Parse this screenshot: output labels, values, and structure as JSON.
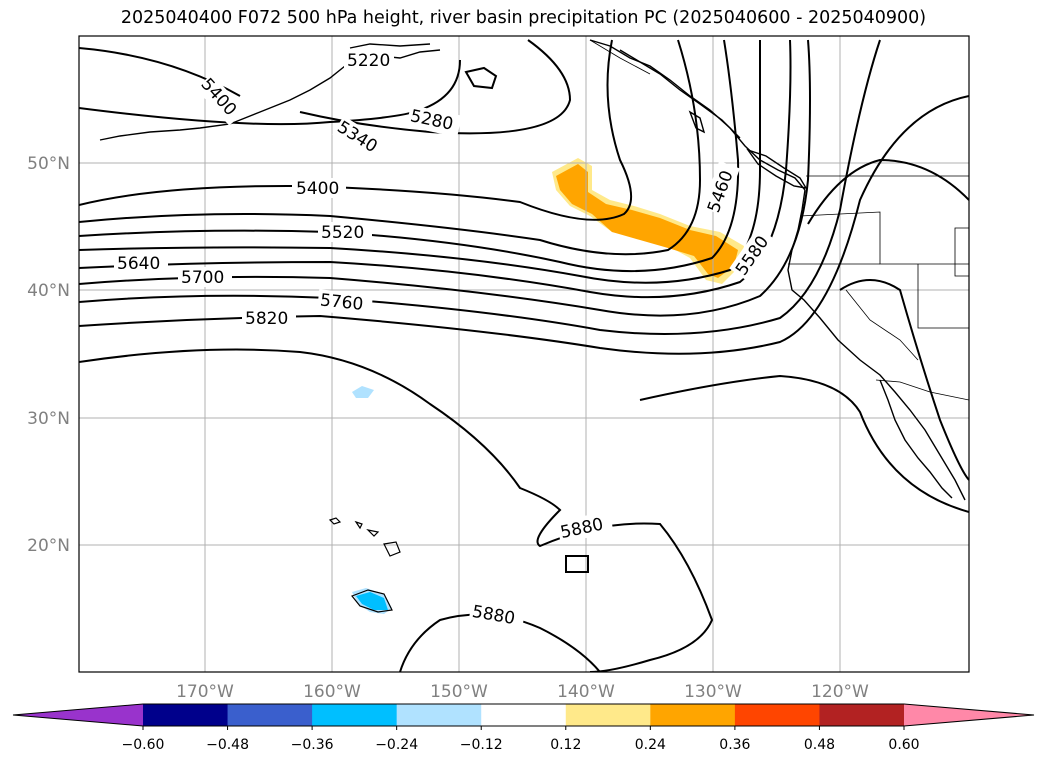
{
  "title": "2025040400 F072 500 hPa height, river basin precipitation PC (2025040600 - 2025040900)",
  "map": {
    "lat_labels": [
      "50°N",
      "40°N",
      "30°N",
      "20°N"
    ],
    "lon_labels": [
      "170°W",
      "160°W",
      "150°W",
      "140°W",
      "130°W",
      "120°W"
    ]
  },
  "contour_labels": [
    "5220",
    "5280",
    "5340",
    "5400",
    "5400",
    "5460",
    "5520",
    "5580",
    "5640",
    "5700",
    "5760",
    "5820",
    "5880",
    "5880"
  ],
  "colorbar": {
    "colors": {
      "low_extend": "#9933cc",
      "bins": [
        "#00008b",
        "#3a5fcd",
        "#00bfff",
        "#b0e2ff",
        "#ffffff",
        "#ffe98a",
        "#ffa500",
        "#ff4500",
        "#b22222",
        "#ff88a8"
      ],
      "high_extend": "#ff88a8"
    },
    "tick_labels": [
      "−0.60",
      "−0.48",
      "−0.36",
      "−0.24",
      "−0.12",
      "0.12",
      "0.24",
      "0.36",
      "0.48",
      "0.60"
    ]
  }
}
